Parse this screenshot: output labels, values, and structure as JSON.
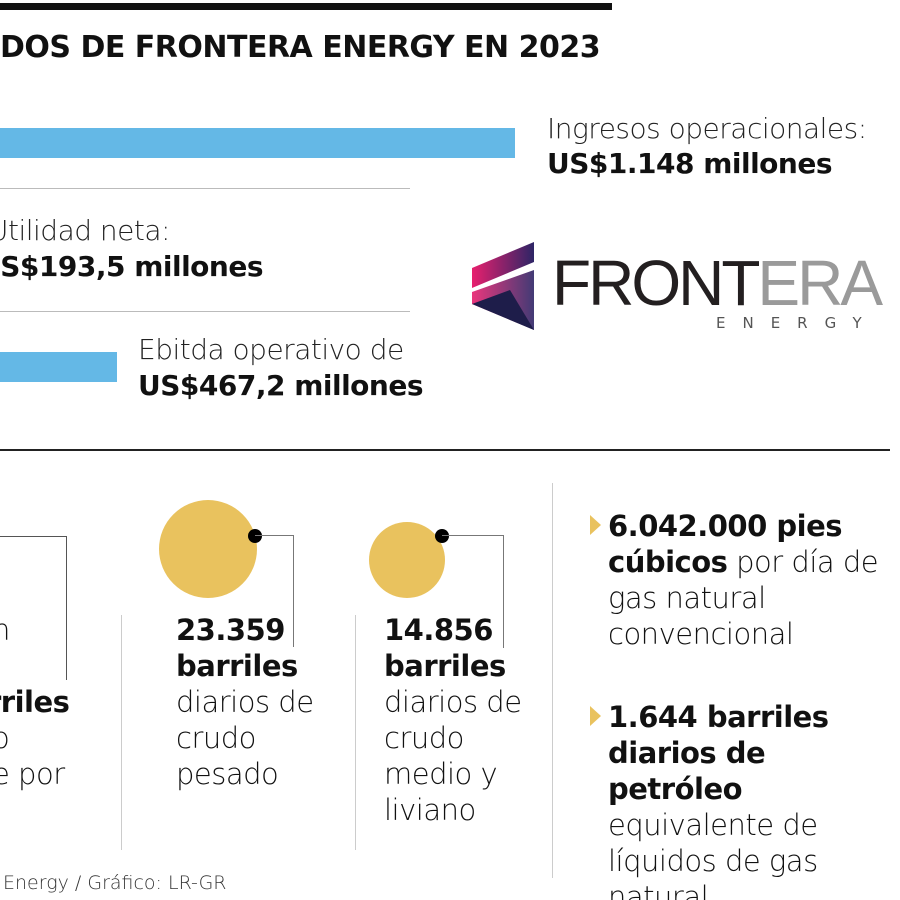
{
  "title": "DOS DE FRONTERA ENERGY EN 2023",
  "chart_data": {
    "type": "bar",
    "orientation": "horizontal",
    "title": "DOS DE FRONTERA ENERGY EN 2023",
    "categories": [
      "Ingresos operacionales",
      "Utilidad neta",
      "Ebitda operativo"
    ],
    "values": [
      1148,
      193.5,
      467.2
    ],
    "unit": "US$ millones",
    "labels": [
      {
        "name": "Ingresos operacionales:",
        "value": "US$1.148 millones"
      },
      {
        "name": "Utilidad neta:",
        "value": "US$193,5 millones"
      },
      {
        "name": "Ebitda operativo de",
        "value": "US$467,2 millones"
      }
    ],
    "bar_color": "#64b8e6"
  },
  "logo": {
    "word1": "FRONT",
    "word2": "ERA",
    "sub": "ENERGY"
  },
  "left_fragment": {
    "l1": "n",
    "l2": "rriles",
    "l3": "o",
    "l4": "e por"
  },
  "production": [
    {
      "value": "23.359",
      "unit": "barriles",
      "desc": [
        "diarios de",
        "crudo",
        "pesado"
      ]
    },
    {
      "value": "14.856",
      "unit": "barriles",
      "desc": [
        "diarios de",
        "crudo",
        "medio y",
        "liviano"
      ]
    }
  ],
  "bullets": [
    {
      "bold": [
        "6.042.000 pies",
        "cúbicos"
      ],
      "rest": [
        " por día de",
        "gas natural",
        "convencional"
      ]
    },
    {
      "bold": [
        "1.644 barriles",
        "diarios de petróleo"
      ],
      "rest": [
        "equivalente de",
        "líquidos de gas",
        "natural"
      ]
    }
  ],
  "source": "Energy / Gráfico: LR-GR",
  "colors": {
    "accent_blue": "#64b8e6",
    "circle_gold": "#e9c25e"
  }
}
